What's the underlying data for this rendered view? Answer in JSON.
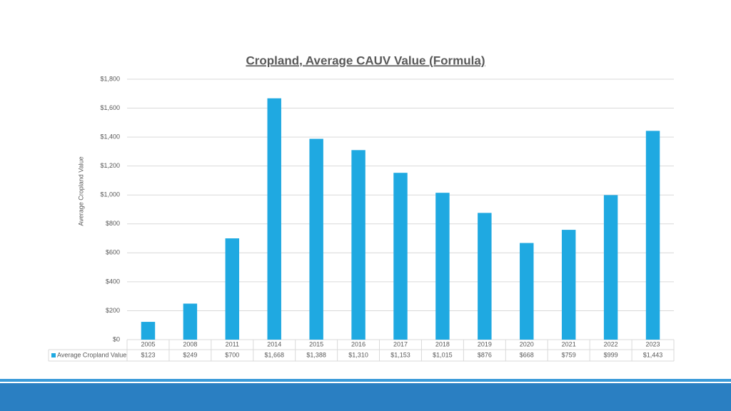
{
  "chart_data": {
    "type": "bar",
    "title": "Cropland, Average CAUV Value (Formula)",
    "y_label": "Average Cropland Value",
    "categories": [
      "2005",
      "2008",
      "2011",
      "2014",
      "2015",
      "2016",
      "2017",
      "2018",
      "2019",
      "2020",
      "2021",
      "2022",
      "2023"
    ],
    "series": [
      {
        "name": "Average Cropland Value",
        "color": "#1fa9e1",
        "values": [
          123,
          249,
          700,
          1668,
          1388,
          1310,
          1153,
          1015,
          876,
          668,
          759,
          999,
          1443
        ],
        "value_labels": [
          "$123",
          "$249",
          "$700",
          "$1,668",
          "$1,388",
          "$1,310",
          "$1,153",
          "$1,015",
          "$876",
          "$668",
          "$759",
          "$999",
          "$1,443"
        ]
      }
    ],
    "ylim": [
      0,
      1800
    ],
    "yticks": [
      {
        "value": 0,
        "label": "$0"
      },
      {
        "value": 200,
        "label": "$200"
      },
      {
        "value": 400,
        "label": "$400"
      },
      {
        "value": 600,
        "label": "$600"
      },
      {
        "value": 800,
        "label": "$800"
      },
      {
        "value": 1000,
        "label": "$1,000"
      },
      {
        "value": 1200,
        "label": "$1,200"
      },
      {
        "value": 1400,
        "label": "$1,400"
      },
      {
        "value": 1600,
        "label": "$1,600"
      },
      {
        "value": 1800,
        "label": "$1,800"
      }
    ],
    "grid": true
  }
}
